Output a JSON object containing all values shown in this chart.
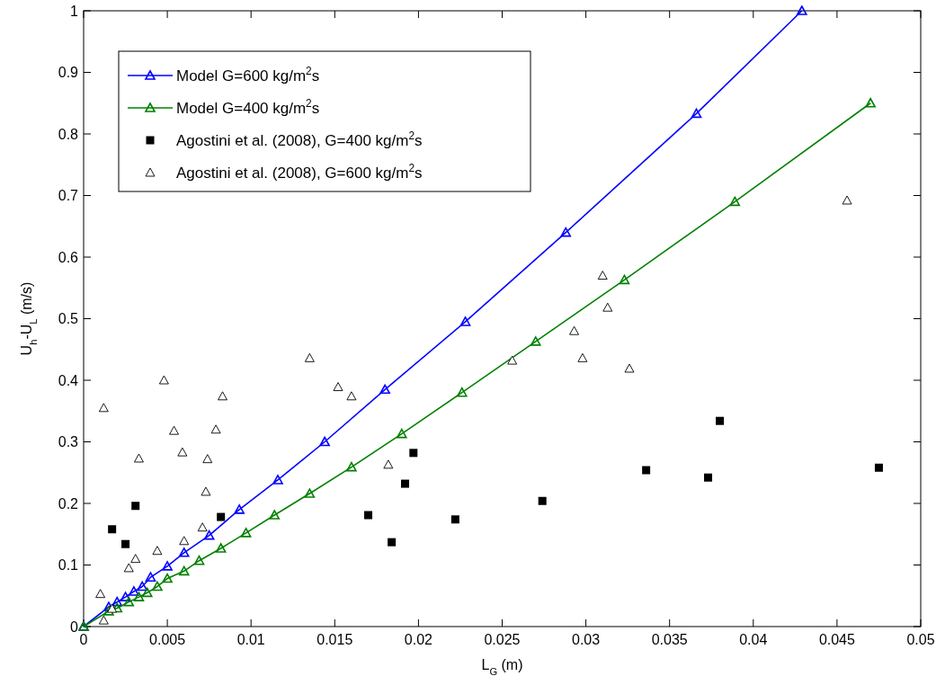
{
  "chart_data": {
    "type": "line",
    "xlabel": "L$_{G}$ (m)",
    "ylabel": "U$_{h}$-U$_{L}$ (m/s)",
    "xlim": [
      0,
      0.05
    ],
    "ylim": [
      0,
      1
    ],
    "xticks": [
      0,
      0.005,
      0.01,
      0.015,
      0.02,
      0.025,
      0.03,
      0.035,
      0.04,
      0.045,
      0.05
    ],
    "yticks": [
      0,
      0.1,
      0.2,
      0.3,
      0.4,
      0.5,
      0.6,
      0.7,
      0.8,
      0.9,
      1
    ],
    "grid": false,
    "legend": "top left",
    "series": [
      {
        "name": "Model G=600 kg/m$^{2}$s",
        "type": "line",
        "marker": "triangle",
        "line_style": "solid",
        "color": "#0000ff",
        "x": [
          0,
          0.0015,
          0.002,
          0.0025,
          0.003,
          0.0035,
          0.004,
          0.005,
          0.006,
          0.0075,
          0.0093,
          0.0116,
          0.0144,
          0.018,
          0.0228,
          0.0288,
          0.0366,
          0.0429
        ],
        "values": [
          0,
          0.032,
          0.04,
          0.048,
          0.057,
          0.065,
          0.08,
          0.098,
          0.12,
          0.148,
          0.19,
          0.238,
          0.3,
          0.385,
          0.495,
          0.64,
          0.833,
          1
        ]
      },
      {
        "name": "Model G=400 kg/m$^{2}$s",
        "type": "line",
        "marker": "triangle",
        "line_style": "solid",
        "color": "#008000",
        "x": [
          0,
          0.0015,
          0.002,
          0.0027,
          0.0033,
          0.0038,
          0.0044,
          0.005,
          0.006,
          0.0069,
          0.0082,
          0.0097,
          0.0114,
          0.0135,
          0.016,
          0.019,
          0.0226,
          0.027,
          0.0323,
          0.0389,
          0.047
        ],
        "values": [
          0,
          0.025,
          0.03,
          0.04,
          0.048,
          0.055,
          0.065,
          0.078,
          0.09,
          0.107,
          0.127,
          0.152,
          0.181,
          0.216,
          0.259,
          0.313,
          0.38,
          0.463,
          0.563,
          0.69,
          0.85
        ]
      },
      {
        "name": "Agostini et al. (2008), G=400 kg/m$^{2}$s",
        "type": "scatter",
        "marker": "square",
        "color": "#000000",
        "x": [
          0.0017,
          0.0025,
          0.0031,
          0.0082,
          0.017,
          0.0184,
          0.0192,
          0.0197,
          0.0222,
          0.0274,
          0.0336,
          0.0373,
          0.038,
          0.0475
        ],
        "values": [
          0.158,
          0.134,
          0.196,
          0.178,
          0.181,
          0.137,
          0.232,
          0.282,
          0.174,
          0.204,
          0.254,
          0.242,
          0.334,
          0.258
        ]
      },
      {
        "name": "Agostini et al. (2008), G=600 kg/m$^{2}$s",
        "type": "scatter",
        "marker": "triangle",
        "color": "#000000",
        "x": [
          0.0012,
          0.0048,
          0.0083,
          0.0054,
          0.0079,
          0.0033,
          0.0059,
          0.0074,
          0.0073,
          0.0071,
          0.006,
          0.0044,
          0.0031,
          0.0027,
          0.001,
          0.0017,
          0.0012,
          0.0135,
          0.0152,
          0.016,
          0.0182,
          0.0256,
          0.0293,
          0.0298,
          0.031,
          0.0313,
          0.0326,
          0.0456
        ],
        "values": [
          0.355,
          0.4,
          0.374,
          0.318,
          0.32,
          0.273,
          0.283,
          0.272,
          0.219,
          0.161,
          0.139,
          0.123,
          0.11,
          0.095,
          0.053,
          0.029,
          0.01,
          0.436,
          0.389,
          0.374,
          0.263,
          0.432,
          0.48,
          0.436,
          0.57,
          0.518,
          0.419,
          0.692
        ]
      }
    ]
  }
}
